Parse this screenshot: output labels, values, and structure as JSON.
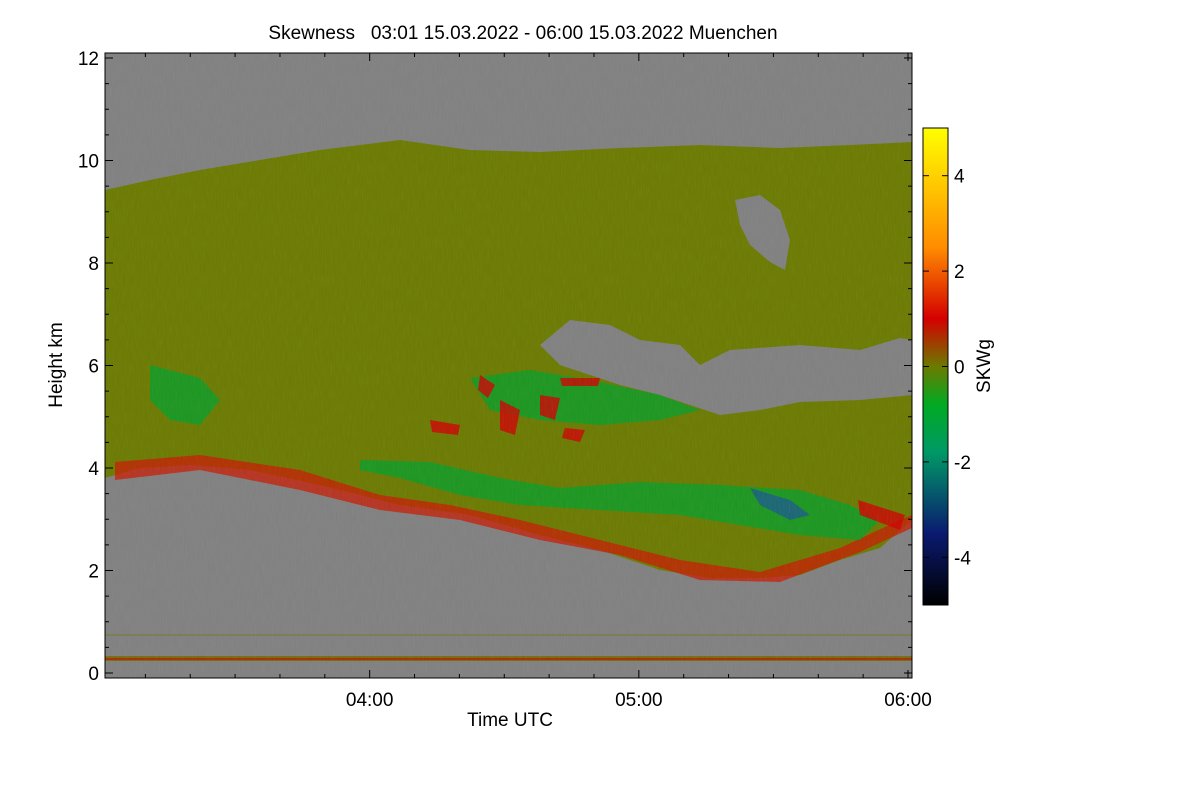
{
  "chart_data": {
    "type": "heatmap",
    "title": "Skewness   03:01 15.03.2022 - 06:00 15.03.2022 Muenchen",
    "xlabel": "Time UTC",
    "ylabel": "Height km",
    "colorbar_label": "SKWg",
    "x_range_utc": [
      "03:01",
      "06:00"
    ],
    "x_ticks": [
      "04:00",
      "05:00",
      "06:00"
    ],
    "y_ticks": [
      "0",
      "2",
      "4",
      "6",
      "8",
      "10",
      "12"
    ],
    "ylim": [
      0,
      12
    ],
    "colorbar_ticks": [
      "4",
      "2",
      "0",
      "-2",
      "-4"
    ],
    "colorbar_range": [
      -5,
      5
    ],
    "colormap": [
      "#000000",
      "#0a1a70",
      "#009966",
      "#00aa22",
      "#6b7a00",
      "#d40000",
      "#ff8c00",
      "#ffff00"
    ],
    "background_value_color": "#808080",
    "layers": [
      {
        "description": "upper cloud layer",
        "top_km": [
          9.5,
          10.3
        ],
        "base_km": [
          4.0,
          2.2
        ],
        "dominant_value": 0
      },
      {
        "description": "near-ground echo line",
        "height_km": 0.3
      }
    ]
  }
}
